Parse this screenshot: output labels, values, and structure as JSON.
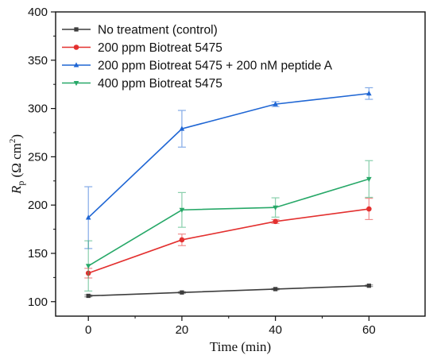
{
  "chart_data": {
    "type": "line",
    "title": "",
    "xlabel": "Time (min)",
    "ylabel": {
      "main": "R",
      "sub": "p",
      "unit_open": " (Ω cm",
      "unit_sup": "2",
      "unit_close": ")"
    },
    "x": [
      0,
      20,
      40,
      60
    ],
    "xticks": [
      "0",
      "20",
      "40",
      "60"
    ],
    "xlim": [
      -7,
      72
    ],
    "ylim": [
      85,
      400
    ],
    "yticks": [
      "100",
      "150",
      "200",
      "250",
      "300",
      "350",
      "400"
    ],
    "grid": false,
    "legend_position": "top-left",
    "series": [
      {
        "name": "No treatment (control)",
        "color": "#3d3d3d",
        "marker": "square",
        "values": [
          106,
          109.5,
          113,
          116.5
        ],
        "errors": [
          1,
          0.8,
          0.8,
          0.8
        ]
      },
      {
        "name": "200 ppm Biotreat 5475",
        "color": "#e3302f",
        "marker": "circle",
        "values": [
          129.5,
          164,
          183,
          196
        ],
        "errors": [
          5,
          6,
          2,
          11
        ]
      },
      {
        "name": "200 ppm Biotreat 5475 + 200 nM peptide A",
        "color": "#1f66d4",
        "marker": "triangle-up",
        "values": [
          187,
          279,
          304.5,
          315.5
        ],
        "errors": [
          32,
          19,
          2.5,
          6
        ]
      },
      {
        "name": "400 ppm Biotreat 5475",
        "color": "#27a868",
        "marker": "triangle-down",
        "values": [
          137,
          195,
          197.5,
          227
        ],
        "errors": [
          26,
          18,
          10,
          19
        ]
      }
    ]
  }
}
